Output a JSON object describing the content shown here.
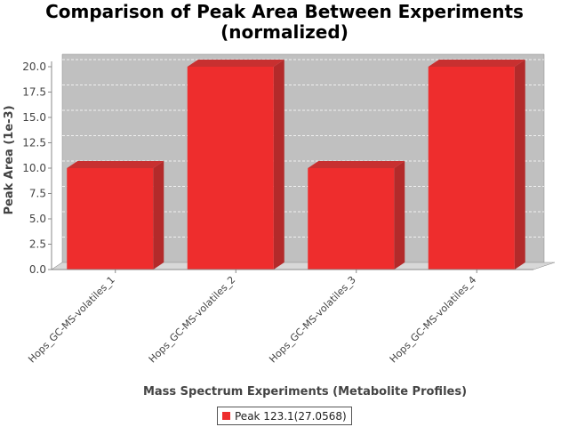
{
  "chart_data": {
    "type": "bar",
    "title_line1": "Comparison of Peak Area Between Experiments",
    "title_line2": "(normalized)",
    "xlabel": "Mass Spectrum Experiments (Metabolite Profiles)",
    "ylabel": "Peak Area (1e-3)",
    "categories": [
      "Hops_GC-MS-volatiles_1",
      "Hops_GC-MS-volatiles_2",
      "Hops_GC-MS-volatiles_3",
      "Hops_GC-MS-volatiles_4"
    ],
    "series": [
      {
        "name": "Peak 123.1(27.0568)",
        "values": [
          10.0,
          20.0,
          10.0,
          20.0
        ],
        "color": "#ee2d2d"
      }
    ],
    "ylim": [
      0,
      20.0
    ],
    "yticks": [
      "0.0",
      "2.5",
      "5.0",
      "7.5",
      "10.0",
      "12.5",
      "15.0",
      "17.5",
      "20.0"
    ],
    "grid": true,
    "legend_position": "bottom"
  }
}
